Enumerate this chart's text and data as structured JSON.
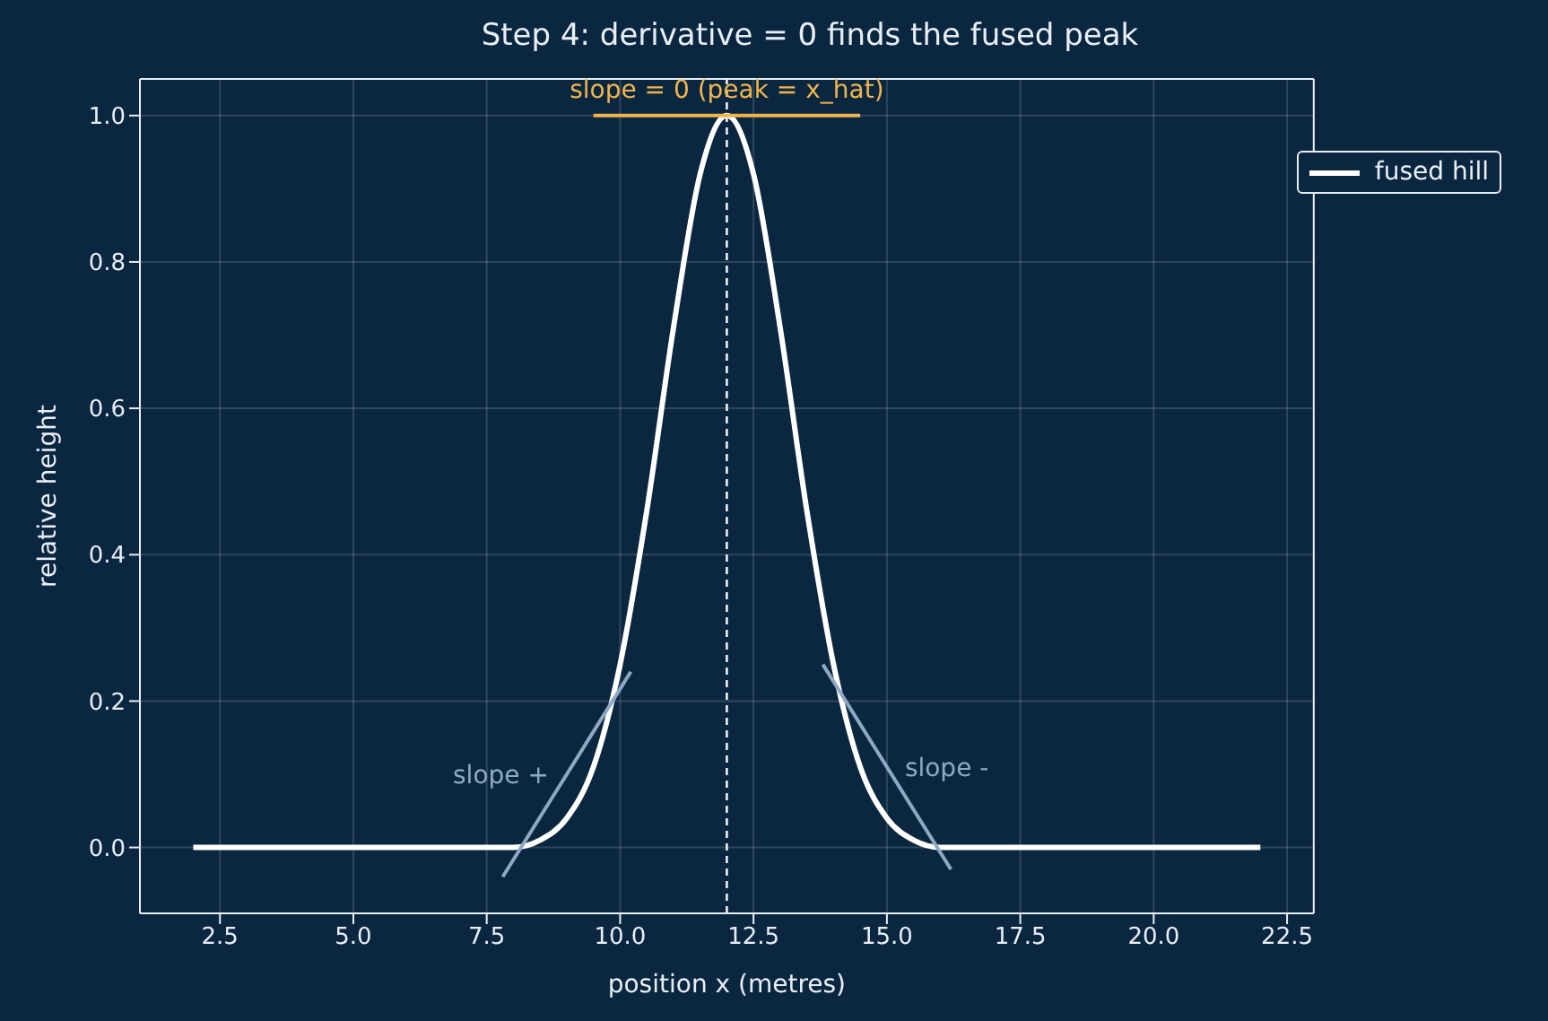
{
  "chart_data": {
    "type": "line",
    "title": "Step 4: derivative = 0 finds the fused peak",
    "xlabel": "position x  (metres)",
    "ylabel": "relative height",
    "series": [
      {
        "name": "fused hill",
        "color": "#ffffff",
        "x": [
          2,
          4,
          6,
          7,
          7.5,
          8,
          8.5,
          9,
          9.5,
          10,
          10.5,
          11,
          11.5,
          12,
          12.5,
          13,
          13.5,
          14,
          14.5,
          15,
          15.5,
          16,
          16.5,
          17,
          18,
          20,
          22
        ],
        "values": [
          0,
          0,
          0,
          0,
          0,
          0,
          0.01,
          0.04,
          0.11,
          0.25,
          0.46,
          0.71,
          0.92,
          1,
          0.92,
          0.71,
          0.46,
          0.25,
          0.11,
          0.04,
          0.01,
          0,
          0,
          0,
          0,
          0,
          0
        ]
      },
      {
        "color": "#8fa9c4",
        "x": [
          7.8,
          10.2
        ],
        "values": [
          -0.04,
          0.24
        ]
      },
      {
        "color": "#8fa9c4",
        "x": [
          13.8,
          16.2
        ],
        "values": [
          0.25,
          -0.03
        ]
      },
      {
        "color": "#f0b44c",
        "x": [
          9.5,
          14.5
        ],
        "values": [
          1,
          1
        ]
      }
    ],
    "ref_lines": [
      {
        "axis": "x",
        "value": 12,
        "color": "#ffffff",
        "line_style": "dashed"
      }
    ],
    "annotations": [
      "slope +",
      "slope -",
      "slope = 0  (peak = x_hat)"
    ],
    "xlim": [
      1,
      23
    ],
    "xticks": [
      2.5,
      {
        "value": 5,
        "label": "5.0"
      },
      7.5,
      {
        "value": 10,
        "label": "10.0"
      },
      12.5,
      {
        "value": 15,
        "label": "15.0"
      },
      17.5,
      {
        "value": 20,
        "label": "20.0"
      },
      22.5
    ],
    "ylim": [
      -0.09,
      1.05
    ],
    "yticks": [
      {
        "value": 0,
        "label": "0.0"
      },
      0.2,
      0.4,
      0.6,
      0.8,
      {
        "value": 1,
        "label": "1.0"
      }
    ],
    "grid": true,
    "legend": "top right"
  }
}
